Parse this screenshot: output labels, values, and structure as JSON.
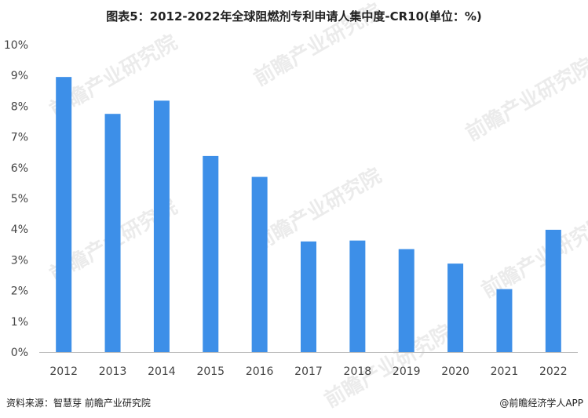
{
  "chart_data": {
    "type": "bar",
    "title": "图表5：2012-2022年全球阻燃剂专利申请人集中度-CR10(单位：%)",
    "categories": [
      "2012",
      "2013",
      "2014",
      "2015",
      "2016",
      "2017",
      "2018",
      "2019",
      "2020",
      "2021",
      "2022"
    ],
    "values": [
      8.95,
      7.75,
      8.18,
      6.38,
      5.7,
      3.6,
      3.63,
      3.35,
      2.88,
      2.05,
      3.98
    ],
    "unit": "%",
    "ylim": [
      0,
      10
    ],
    "yticks": [
      "0%",
      "1%",
      "2%",
      "3%",
      "4%",
      "5%",
      "6%",
      "7%",
      "8%",
      "9%",
      "10%"
    ],
    "grid": false,
    "legend": "none",
    "colors": {
      "bar": "#3d8fe8",
      "axis": "#bfbfbf"
    }
  },
  "footer": {
    "source": "资料来源：智慧芽 前瞻产业研究院",
    "publisher": "@前瞻经济学人APP"
  },
  "watermark": "前瞻产业研究院"
}
